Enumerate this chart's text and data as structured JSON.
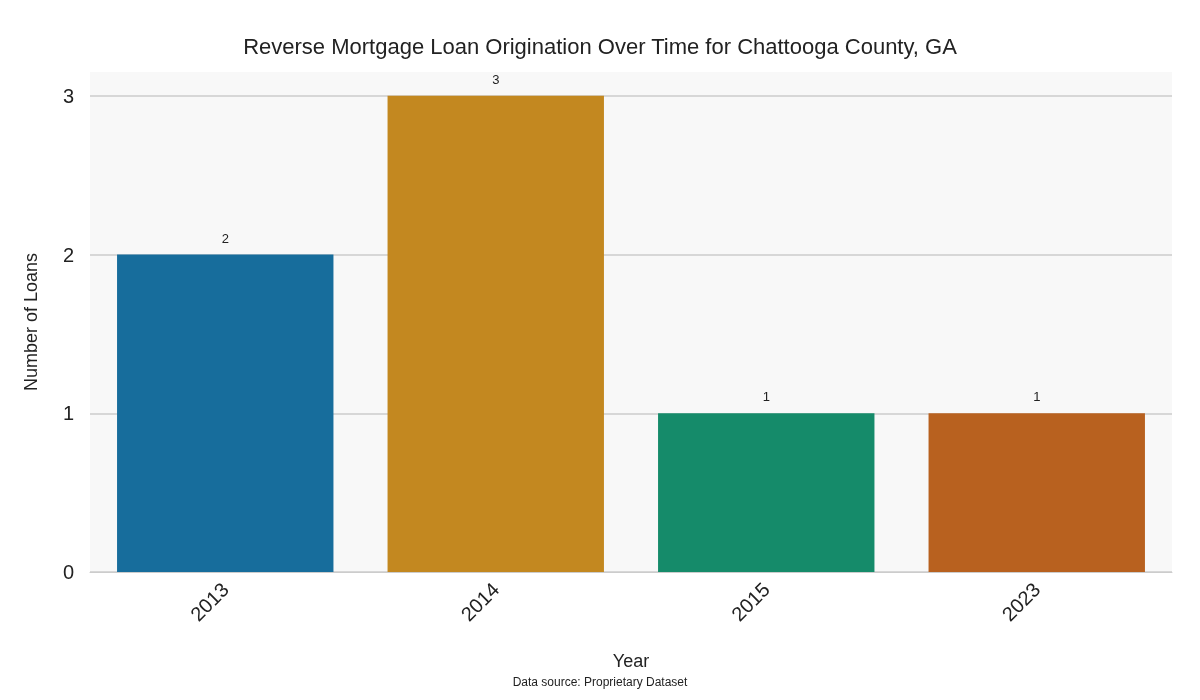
{
  "chart_data": {
    "type": "bar",
    "title": "Reverse Mortgage Loan Origination Over Time for Chattooga County, GA",
    "xlabel": "Year",
    "ylabel": "Number of Loans",
    "categories": [
      "2013",
      "2014",
      "2015",
      "2023"
    ],
    "values": [
      2,
      3,
      1,
      1
    ],
    "colors": [
      "#176d9c",
      "#c38820",
      "#158b6a",
      "#b8611f"
    ],
    "ylim": [
      0,
      3.15
    ],
    "yticks": [
      0,
      1,
      2,
      3
    ],
    "grid": "y",
    "data_labels": true,
    "annotations": [
      "Data source: Proprietary Dataset"
    ]
  }
}
